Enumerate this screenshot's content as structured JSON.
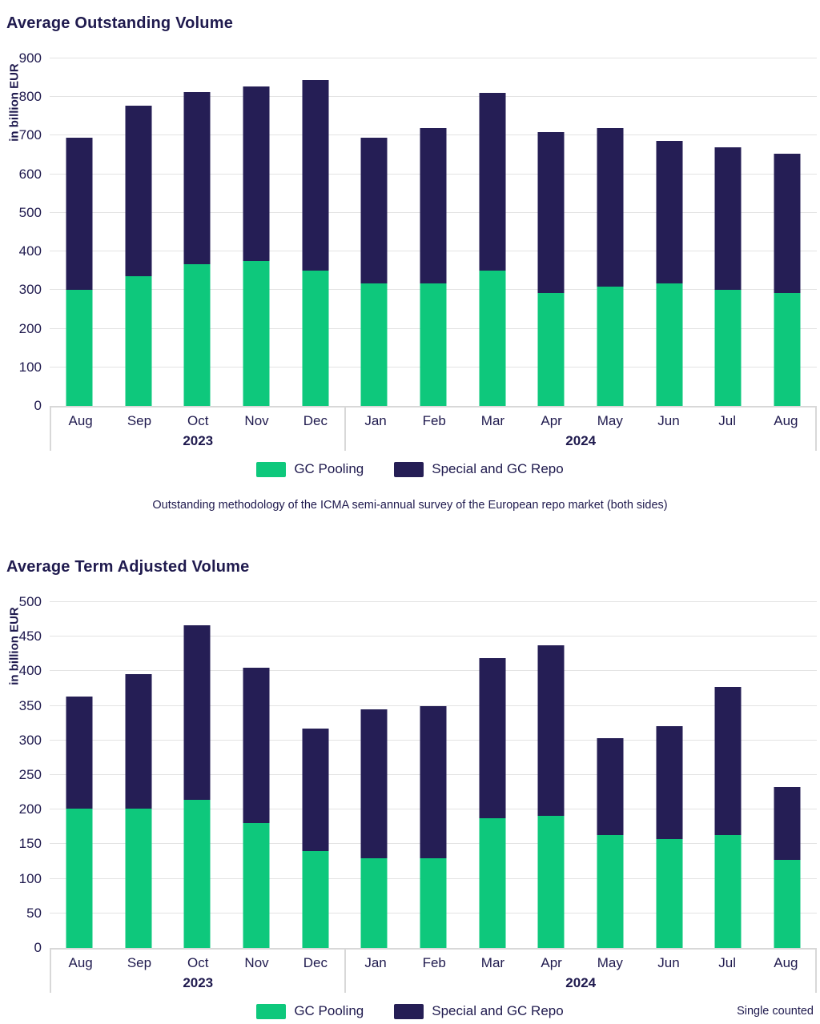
{
  "colors": {
    "gc_pooling": "#0ec87c",
    "special_gc_repo": "#251e55",
    "text": "#1f1a4e",
    "gridline": "#e3e3e3",
    "axis_band_border": "#d8d8d8",
    "background": "#ffffff"
  },
  "chart_data": [
    {
      "type": "bar",
      "stacked": true,
      "title": "Average Outstanding Volume",
      "ylabel": "in billion EUR",
      "ylim": [
        0,
        900
      ],
      "ystep": 100,
      "grid": true,
      "legend_position": "bottom",
      "categories": [
        "Aug",
        "Sep",
        "Oct",
        "Nov",
        "Dec",
        "Jan",
        "Feb",
        "Mar",
        "Apr",
        "May",
        "Jun",
        "Jul",
        "Aug"
      ],
      "groups": [
        {
          "label": "2023",
          "count": 5
        },
        {
          "label": "2024",
          "count": 8
        }
      ],
      "series": [
        {
          "name": "GC Pooling",
          "color": "#0ec87c",
          "values": [
            300,
            335,
            367,
            376,
            351,
            317,
            317,
            351,
            292,
            309,
            317,
            301,
            292
          ]
        },
        {
          "name": "Special and GC Repo",
          "color": "#251e55",
          "values": [
            395,
            443,
            445,
            452,
            494,
            378,
            402,
            460,
            418,
            410,
            369,
            368,
            361
          ]
        }
      ],
      "totals": [
        695,
        778,
        812,
        828,
        845,
        695,
        719,
        811,
        710,
        719,
        686,
        669,
        653
      ],
      "caption": "Outstanding methodology of the ICMA semi-annual survey of the European repo market (both sides)"
    },
    {
      "type": "bar",
      "stacked": true,
      "title": "Average Term Adjusted Volume",
      "ylabel": "in billion EUR",
      "ylim": [
        0,
        500
      ],
      "ystep": 50,
      "grid": true,
      "legend_position": "bottom",
      "categories": [
        "Aug",
        "Sep",
        "Oct",
        "Nov",
        "Dec",
        "Jan",
        "Feb",
        "Mar",
        "Apr",
        "May",
        "Jun",
        "Jul",
        "Aug"
      ],
      "groups": [
        {
          "label": "2023",
          "count": 5
        },
        {
          "label": "2024",
          "count": 8
        }
      ],
      "series": [
        {
          "name": "GC Pooling",
          "color": "#0ec87c",
          "values": [
            201,
            201,
            214,
            181,
            140,
            130,
            130,
            187,
            191,
            163,
            158,
            163,
            127
          ]
        },
        {
          "name": "Special and GC Repo",
          "color": "#251e55",
          "values": [
            162,
            195,
            252,
            224,
            177,
            215,
            219,
            232,
            247,
            140,
            163,
            214,
            106
          ]
        }
      ],
      "totals": [
        363,
        396,
        466,
        405,
        317,
        345,
        349,
        419,
        438,
        303,
        321,
        377,
        233
      ],
      "note": "Single counted"
    }
  ]
}
